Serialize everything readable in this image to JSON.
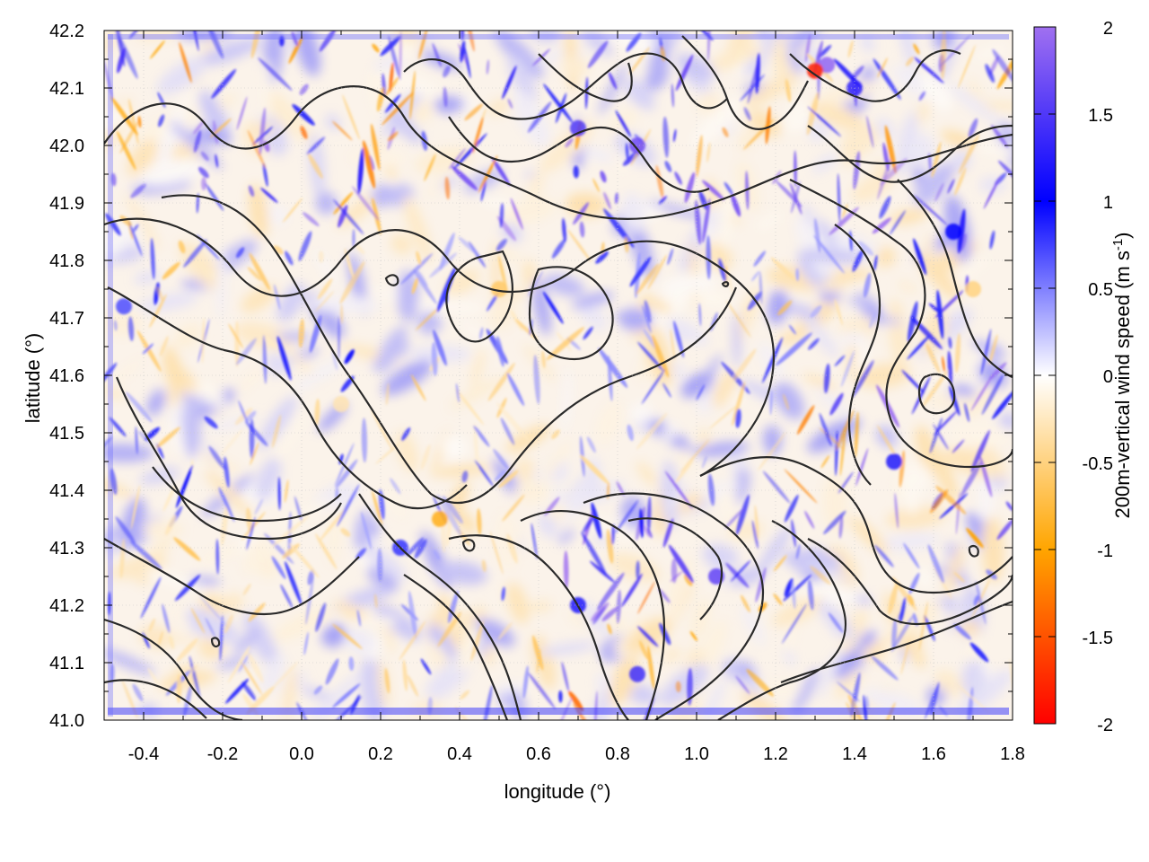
{
  "chart_data": {
    "type": "heatmap",
    "title": "",
    "xlabel": "longitude (°)",
    "ylabel": "latitude (°)",
    "xlim": [
      -0.5,
      1.8
    ],
    "ylim": [
      41.0,
      42.2
    ],
    "x_ticks": [
      "-0.4",
      "-0.2",
      "0.0",
      "0.2",
      "0.4",
      "0.6",
      "0.8",
      "1.0",
      "1.2",
      "1.4",
      "1.6",
      "1.8"
    ],
    "y_ticks": [
      "41.0",
      "41.1",
      "41.2",
      "41.3",
      "41.4",
      "41.5",
      "41.6",
      "41.7",
      "41.8",
      "41.9",
      "42.0",
      "42.1",
      "42.2"
    ],
    "grid": true,
    "colorbar": {
      "label_main": "200m-vertical wind speed (m s",
      "label_sup": "-1",
      "label_end": ")",
      "range": [
        -2,
        2
      ],
      "ticks": [
        "2",
        "1.5",
        "1",
        "0.5",
        "0",
        "-0.5",
        "-1",
        "-1.5",
        "-2"
      ],
      "colors": {
        "min": "#ff0000",
        "low": "#ffa500",
        "mid": "#ffffff",
        "high": "#0000ff",
        "max": "#a070f0"
      }
    },
    "contours": "topography contour lines (black)",
    "features": [
      {
        "lon": 1.33,
        "lat": 42.14,
        "w": 1.9
      },
      {
        "lon": 1.3,
        "lat": 42.13,
        "w": -1.8
      },
      {
        "lon": 0.85,
        "lat": 42.0,
        "w": 1.7
      },
      {
        "lon": 0.7,
        "lat": 42.03,
        "w": 1.5
      },
      {
        "lon": 1.05,
        "lat": 41.25,
        "w": 1.6
      },
      {
        "lon": 0.85,
        "lat": 41.08,
        "w": 1.4
      },
      {
        "lon": 1.5,
        "lat": 41.45,
        "w": 1.2
      },
      {
        "lon": 0.5,
        "lat": 41.75,
        "w": -0.6
      },
      {
        "lon": 0.35,
        "lat": 41.35,
        "w": -0.9
      },
      {
        "lon": 0.25,
        "lat": 41.3,
        "w": 0.8
      },
      {
        "lon": -0.45,
        "lat": 41.72,
        "w": 0.7
      },
      {
        "lon": 1.7,
        "lat": 41.75,
        "w": -0.5
      },
      {
        "lon": 1.65,
        "lat": 41.85,
        "w": 1.0
      },
      {
        "lon": 0.1,
        "lat": 41.55,
        "w": -0.3
      },
      {
        "lon": 0.7,
        "lat": 41.2,
        "w": 1.2
      },
      {
        "lon": 1.4,
        "lat": 42.1,
        "w": 1.3
      }
    ]
  }
}
